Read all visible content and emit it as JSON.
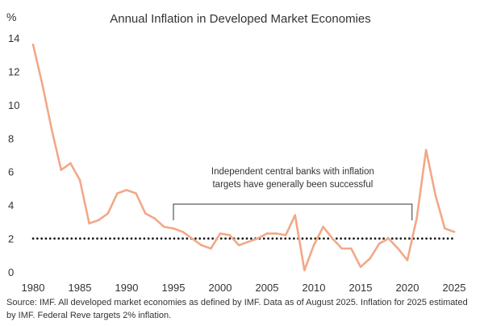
{
  "chart_data": {
    "type": "line",
    "title": "Annual Inflation in Developed Market Economies",
    "ylabel": "%",
    "xlabel": "",
    "xlim": [
      1980,
      2025
    ],
    "ylim": [
      0,
      14
    ],
    "x_ticks": [
      "1980",
      "1985",
      "1990",
      "1995",
      "2000",
      "2005",
      "2010",
      "2015",
      "2020",
      "2025"
    ],
    "y_ticks": [
      "0",
      "2",
      "4",
      "6",
      "8",
      "10",
      "12",
      "14"
    ],
    "grid": false,
    "series": [
      {
        "color": "#f2a888",
        "x": [
          1980,
          1981,
          1982,
          1983,
          1984,
          1985,
          1986,
          1987,
          1988,
          1989,
          1990,
          1991,
          1992,
          1993,
          1994,
          1995,
          1996,
          1997,
          1998,
          1999,
          2000,
          2001,
          2002,
          2003,
          2004,
          2005,
          2006,
          2007,
          2008,
          2009,
          2010,
          2011,
          2012,
          2013,
          2014,
          2015,
          2016,
          2017,
          2018,
          2019,
          2020,
          2021,
          2022,
          2023,
          2024,
          2025
        ],
        "values": [
          13.6,
          11.2,
          8.5,
          6.1,
          6.5,
          5.5,
          2.9,
          3.1,
          3.5,
          4.7,
          4.9,
          4.7,
          3.5,
          3.2,
          2.7,
          2.6,
          2.4,
          2.0,
          1.6,
          1.4,
          2.3,
          2.2,
          1.6,
          1.8,
          2.0,
          2.3,
          2.3,
          2.2,
          3.4,
          0.1,
          1.6,
          2.7,
          2.0,
          1.4,
          1.4,
          0.3,
          0.8,
          1.7,
          2.0,
          1.4,
          0.7,
          3.2,
          7.3,
          4.6,
          2.6,
          2.4
        ]
      }
    ],
    "reference_line": {
      "value": 2,
      "style": "dotted"
    },
    "annotation": {
      "lines": [
        "Independent central banks with inflation",
        "targets have generally been successful"
      ],
      "x_start": 1995,
      "x_end": 2020.5
    },
    "source": "Source: IMF. All developed market economies as defined by IMF. Data as of August 2025. Inflation for 2025 estimated by IMF. Federal Reve targets 2% inflation."
  }
}
